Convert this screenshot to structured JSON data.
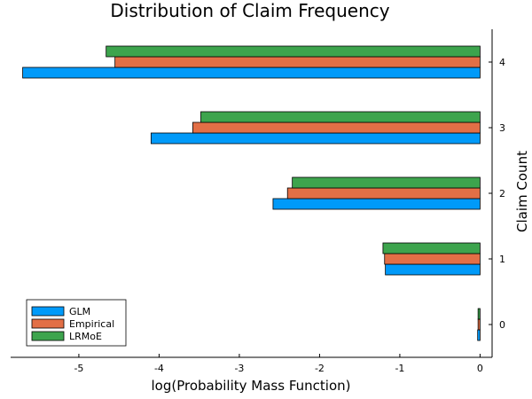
{
  "chart_data": {
    "type": "bar",
    "orientation": "horizontal",
    "title": "Distribution of Claim Frequency",
    "xlabel": "log(Probability Mass Function)",
    "ylabel": "Claim Count",
    "xlim": [
      -5.85,
      0.15
    ],
    "x_ticks": [
      -5,
      -4,
      -3,
      -2,
      -1,
      0
    ],
    "categories": [
      "0",
      "1",
      "2",
      "3",
      "4"
    ],
    "series": [
      {
        "name": "GLM",
        "color": "#009af9",
        "values": [
          -0.03,
          -1.18,
          -2.58,
          -4.1,
          -5.7
        ]
      },
      {
        "name": "Empirical",
        "color": "#e26f46",
        "values": [
          -0.025,
          -1.19,
          -2.4,
          -3.58,
          -4.55
        ]
      },
      {
        "name": "LRMoE",
        "color": "#3da44d",
        "values": [
          -0.025,
          -1.21,
          -2.34,
          -3.48,
          -4.66
        ]
      }
    ],
    "legend_position": "bottom-left",
    "grid": false,
    "y_axis_side": "right"
  }
}
